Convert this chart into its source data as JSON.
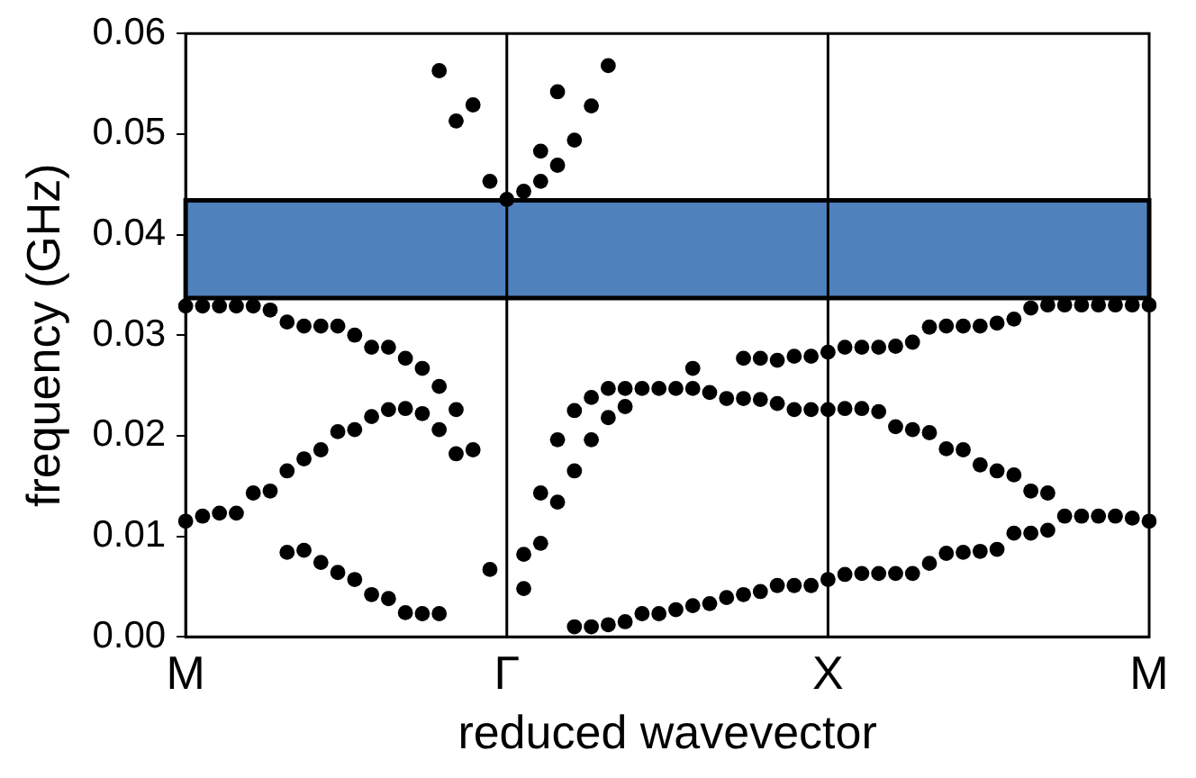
{
  "chart_data": {
    "type": "scatter",
    "xlabel": "reduced wavevector",
    "ylabel": "frequency (GHz)",
    "categories": [
      "M",
      null,
      null,
      null,
      null,
      null,
      null,
      null,
      null,
      null,
      null,
      null,
      null,
      null,
      null,
      null,
      null,
      null,
      null,
      "Γ",
      null,
      null,
      null,
      null,
      null,
      null,
      null,
      null,
      null,
      null,
      null,
      null,
      null,
      null,
      null,
      null,
      null,
      null,
      "X",
      null,
      null,
      null,
      null,
      null,
      null,
      null,
      null,
      null,
      null,
      null,
      null,
      null,
      null,
      null,
      null,
      null,
      null,
      "M"
    ],
    "ylim": [
      0,
      0.06
    ],
    "yticks": [
      {
        "value": 0,
        "label": "0.00"
      },
      {
        "value": 0.01,
        "label": "0.01"
      },
      {
        "value": 0.02,
        "label": "0.02"
      },
      {
        "value": 0.03,
        "label": "0.03"
      },
      {
        "value": 0.04,
        "label": "0.04"
      },
      {
        "value": 0.05,
        "label": "0.05"
      },
      {
        "value": 0.06,
        "label": "0.06"
      }
    ],
    "grid": false,
    "legend": false,
    "marker": "circle",
    "ref_lines": [
      {
        "axis": "x",
        "value": "Γ",
        "color": "#000000"
      },
      {
        "axis": "x",
        "value": "X",
        "color": "#000000"
      }
    ],
    "bands": [
      {
        "axis": "y",
        "from": 0.0337,
        "to": 0.0434,
        "color": "#4f81bd"
      }
    ],
    "series": [
      {
        "color": "#000000",
        "values": [
          0.0115,
          0.012,
          0.0123,
          0.0123,
          0.0143,
          0.0145,
          0.0084,
          0.0086,
          0.0074,
          0.0064,
          0.0057,
          0.0042,
          0.0038,
          0.0024,
          0.0023,
          0.0023,
          0.0182,
          0.0186,
          0.0067,
          0.0435,
          0.0048,
          0.0093,
          0.0134,
          0.001,
          0.001,
          0.0012,
          0.0015,
          0.0023,
          0.0023,
          0.0027,
          0.0031,
          0.0033,
          0.0039,
          0.0042,
          0.0045,
          0.0051,
          0.0051,
          0.0051,
          0.0057,
          0.0062,
          0.0063,
          0.0063,
          0.0063,
          0.0063,
          0.0073,
          0.0083,
          0.0084,
          0.0085,
          0.0087,
          0.0103,
          0.0103,
          0.0106,
          0.012,
          0.012,
          0.012,
          0.012,
          0.0118,
          0.0115
        ]
      },
      {
        "color": "#000000",
        "values": [
          0.0329,
          0.0329,
          0.0329,
          0.0329,
          0.0329,
          0.0325,
          0.0165,
          0.0177,
          0.0186,
          0.0204,
          0.0206,
          0.0219,
          0.0226,
          0.0227,
          0.0222,
          0.0206,
          0.0226,
          0.0529,
          0.0453,
          null,
          0.0082,
          0.0143,
          0.0196,
          0.0165,
          0.0196,
          0.0218,
          0.0229,
          0.0247,
          0.0247,
          0.0247,
          0.0247,
          0.0243,
          0.0237,
          0.0237,
          0.0236,
          0.0232,
          0.0226,
          0.0226,
          0.0226,
          0.0227,
          0.0227,
          0.0224,
          0.0209,
          0.0206,
          0.0203,
          0.0187,
          0.0186,
          0.0171,
          0.0165,
          0.0161,
          0.0145,
          0.0143,
          0.033,
          0.033,
          0.033,
          0.033,
          0.033,
          0.033
        ]
      },
      {
        "color": "#000000",
        "values": [
          null,
          null,
          null,
          null,
          null,
          null,
          0.0313,
          0.0309,
          0.0309,
          0.0309,
          0.03,
          0.0288,
          0.0288,
          0.0277,
          0.0267,
          0.0249,
          0.0513,
          null,
          null,
          null,
          0.0443,
          0.0453,
          0.0469,
          0.0225,
          0.0238,
          0.0247,
          0.0247,
          null,
          null,
          null,
          0.0267,
          null,
          null,
          0.0277,
          0.0277,
          0.0275,
          0.0279,
          0.0279,
          0.0283,
          0.0288,
          0.0288,
          0.0288,
          0.0289,
          0.0293,
          0.0308,
          0.0309,
          0.0309,
          0.0309,
          0.0312,
          0.0316,
          0.0327,
          0.033,
          null,
          null,
          null,
          null,
          null,
          null
        ]
      },
      {
        "color": "#000000",
        "values": [
          null,
          null,
          null,
          null,
          null,
          null,
          null,
          null,
          null,
          null,
          null,
          null,
          null,
          null,
          null,
          0.0563,
          null,
          null,
          null,
          null,
          null,
          0.0483,
          0.0542,
          0.0494,
          0.0528,
          0.0568,
          null,
          null,
          null,
          null,
          null,
          null,
          null,
          null,
          null,
          null,
          null,
          null,
          null,
          null,
          null,
          null,
          null,
          null,
          null,
          null,
          null,
          null,
          null,
          null,
          null,
          null,
          null,
          null,
          null,
          null,
          null,
          null
        ]
      }
    ]
  }
}
